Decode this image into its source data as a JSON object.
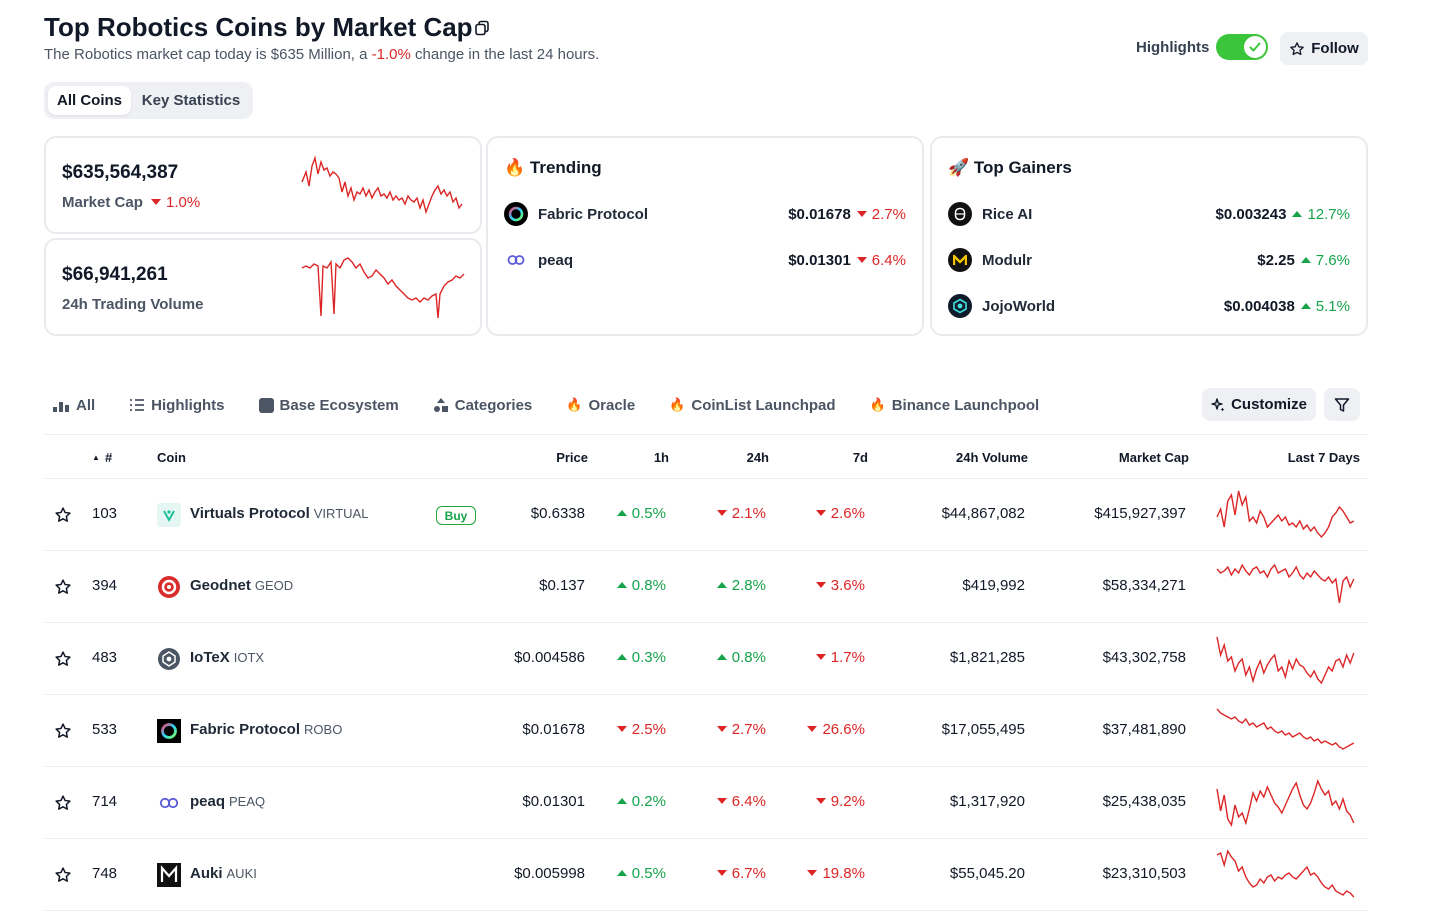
{
  "header": {
    "title": "Top Robotics Coins by Market Cap",
    "subtitle_prefix": "The Robotics market cap today is $635 Million, a ",
    "subtitle_change": "-1.0%",
    "subtitle_suffix": " change in the last 24 hours.",
    "highlights_label": "Highlights",
    "highlights_on": true,
    "follow_label": "Follow"
  },
  "view_tabs": {
    "all_coins": "All Coins",
    "key_statistics": "Key Statistics",
    "active": "All Coins"
  },
  "stats": {
    "market_cap": {
      "value": "$635,564,387",
      "label": "Market Cap",
      "change": "1.0%",
      "direction": "down"
    },
    "volume": {
      "value": "$66,941,261",
      "label": "24h Trading Volume"
    }
  },
  "trending": {
    "title": "Trending",
    "icon": "fire-icon",
    "items": [
      {
        "name": "Fabric Protocol",
        "price": "$0.01678",
        "change": "2.7%",
        "direction": "down"
      },
      {
        "name": "peaq",
        "price": "$0.01301",
        "change": "6.4%",
        "direction": "down"
      }
    ]
  },
  "top_gainers": {
    "title": "Top Gainers",
    "icon": "rocket-icon",
    "items": [
      {
        "name": "Rice AI",
        "price": "$0.003243",
        "change": "12.7%",
        "direction": "up"
      },
      {
        "name": "Modulr",
        "price": "$2.25",
        "change": "7.6%",
        "direction": "up"
      },
      {
        "name": "JojoWorld",
        "price": "$0.004038",
        "change": "5.1%",
        "direction": "up"
      }
    ]
  },
  "filter_tabs": {
    "all": "All",
    "highlights": "Highlights",
    "base_ecosystem": "Base Ecosystem",
    "categories": "Categories",
    "oracle": "Oracle",
    "coinlist": "CoinList Launchpad",
    "binance": "Binance Launchpool",
    "customize": "Customize"
  },
  "table": {
    "columns": {
      "rank": "#",
      "coin": "Coin",
      "price": "Price",
      "h1": "1h",
      "h24": "24h",
      "d7": "7d",
      "volume": "24h Volume",
      "mcap": "Market Cap",
      "last7": "Last 7 Days"
    },
    "buy_label": "Buy",
    "rows": [
      {
        "rank": "103",
        "name": "Virtuals Protocol",
        "symbol": "VIRTUAL",
        "price": "$0.6338",
        "h1": "0.5%",
        "h1_dir": "up",
        "h24": "2.1%",
        "h24_dir": "down",
        "d7": "2.6%",
        "d7_dir": "down",
        "volume": "$44,867,082",
        "mcap": "$415,927,397"
      },
      {
        "rank": "394",
        "name": "Geodnet",
        "symbol": "GEOD",
        "price": "$0.137",
        "h1": "0.8%",
        "h1_dir": "up",
        "h24": "2.8%",
        "h24_dir": "up",
        "d7": "3.6%",
        "d7_dir": "down",
        "volume": "$419,992",
        "mcap": "$58,334,271"
      },
      {
        "rank": "483",
        "name": "IoTeX",
        "symbol": "IOTX",
        "price": "$0.004586",
        "h1": "0.3%",
        "h1_dir": "up",
        "h24": "0.8%",
        "h24_dir": "up",
        "d7": "1.7%",
        "d7_dir": "down",
        "volume": "$1,821,285",
        "mcap": "$43,302,758"
      },
      {
        "rank": "533",
        "name": "Fabric Protocol",
        "symbol": "ROBO",
        "price": "$0.01678",
        "h1": "2.5%",
        "h1_dir": "down",
        "h24": "2.7%",
        "h24_dir": "down",
        "d7": "26.6%",
        "d7_dir": "down",
        "volume": "$17,055,495",
        "mcap": "$37,481,890"
      },
      {
        "rank": "714",
        "name": "peaq",
        "symbol": "PEAQ",
        "price": "$0.01301",
        "h1": "0.2%",
        "h1_dir": "up",
        "h24": "6.4%",
        "h24_dir": "down",
        "d7": "9.2%",
        "d7_dir": "down",
        "volume": "$1,317,920",
        "mcap": "$25,438,035"
      },
      {
        "rank": "748",
        "name": "Auki",
        "symbol": "AUKI",
        "price": "$0.005998",
        "h1": "0.5%",
        "h1_dir": "up",
        "h24": "6.7%",
        "h24_dir": "down",
        "d7": "19.8%",
        "d7_dir": "down",
        "volume": "$55,045.20",
        "mcap": "$23,310,503"
      }
    ]
  },
  "colors": {
    "negative": "#dc2626",
    "positive": "#16a34a",
    "toggle_on": "#3bc53a"
  }
}
